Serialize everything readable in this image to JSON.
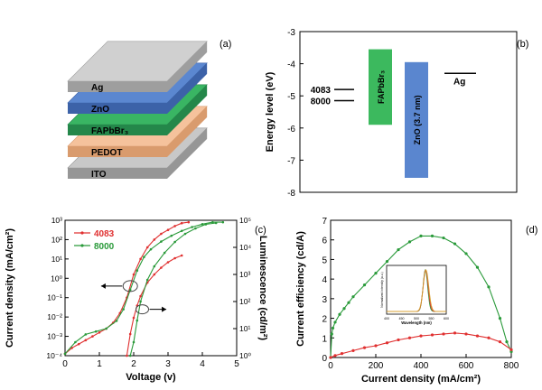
{
  "panel_a": {
    "label": "(a)",
    "layers": [
      {
        "name": "Ag",
        "color": "#d0d0d0",
        "side": "#9e9e9e"
      },
      {
        "name": "ZnO",
        "color": "#5b87d0",
        "side": "#3c62a8"
      },
      {
        "name": "FAPbBr₃",
        "color": "#39b563",
        "side": "#24874a"
      },
      {
        "name": "PEDOT",
        "color": "#f5c29c",
        "side": "#d99b6d"
      },
      {
        "name": "ITO",
        "color": "#c8c8c8",
        "side": "#969696"
      }
    ]
  },
  "chart_data": [
    {
      "panel": "(b)",
      "type": "bar",
      "ylabel": "Energy level (eV)",
      "ylim": [
        -8,
        -3
      ],
      "yticks": [
        -3,
        -4,
        -5,
        -6,
        -7,
        -8
      ],
      "levels": [
        {
          "label": "4083",
          "value": -4.8
        },
        {
          "label": "8000",
          "value": -5.15
        },
        {
          "label": "Ag",
          "value": -4.3
        }
      ],
      "bars": [
        {
          "label": "FAPbBr₃",
          "top": -3.55,
          "bottom": -5.9,
          "color": "#3cb95e"
        },
        {
          "label": "ZnO (3.7 nm)",
          "top": -3.95,
          "bottom": -7.55,
          "color": "#5a86cf"
        }
      ]
    },
    {
      "panel": "(c)",
      "type": "line",
      "xlabel": "Voltage (v)",
      "ylabel_left": "Current density (mA/cm²)",
      "ylabel_right": "Luminescence (cd/m²)",
      "xlim": [
        0,
        5
      ],
      "xticks": [
        0,
        1,
        2,
        3,
        4,
        5
      ],
      "y_left_log": [
        -4,
        3
      ],
      "y_right_log": [
        0,
        5
      ],
      "y_left_ticks": [
        "10⁻⁴",
        "10⁻³",
        "10⁻²",
        "10⁻¹",
        "10⁰",
        "10¹",
        "10²",
        "10³"
      ],
      "y_right_ticks": [
        "10⁰",
        "10¹",
        "10²",
        "10³",
        "10⁴",
        "10⁵"
      ],
      "legend": [
        {
          "name": "4083",
          "color": "#e03030"
        },
        {
          "name": "8000",
          "color": "#2a9a3a"
        }
      ],
      "series": [
        {
          "name": "4083",
          "axis": "left",
          "color": "#e03030",
          "x": [
            0.0,
            0.2,
            0.4,
            0.6,
            0.8,
            1.0,
            1.2,
            1.4,
            1.6,
            1.8,
            2.0,
            2.2,
            2.4,
            2.6,
            2.8,
            3.0,
            3.2,
            3.4,
            3.6
          ],
          "y": [
            -3.9,
            -3.6,
            -3.4,
            -3.2,
            -3.0,
            -2.8,
            -2.6,
            -2.3,
            -1.8,
            -1.0,
            0.2,
            1.0,
            1.6,
            2.0,
            2.3,
            2.5,
            2.7,
            2.85,
            2.9
          ]
        },
        {
          "name": "8000",
          "axis": "left",
          "color": "#2a9a3a",
          "x": [
            0.0,
            0.3,
            0.6,
            0.9,
            1.2,
            1.5,
            1.7,
            1.9,
            2.1,
            2.3,
            2.5,
            2.8,
            3.1,
            3.4,
            3.7,
            4.0,
            4.3,
            4.6
          ],
          "y": [
            -3.9,
            -3.3,
            -2.9,
            -2.75,
            -2.6,
            -2.2,
            -1.6,
            -0.6,
            0.4,
            1.1,
            1.5,
            1.9,
            2.2,
            2.45,
            2.65,
            2.8,
            2.9,
            2.9
          ]
        },
        {
          "name": "4083",
          "axis": "right",
          "color": "#e03030",
          "x": [
            1.8,
            1.9,
            2.0,
            2.1,
            2.2,
            2.4,
            2.6,
            2.8,
            3.0,
            3.2,
            3.4
          ],
          "y": [
            0.0,
            0.8,
            1.4,
            1.85,
            2.2,
            2.7,
            3.0,
            3.25,
            3.45,
            3.6,
            3.7
          ]
        },
        {
          "name": "8000",
          "axis": "right",
          "color": "#2a9a3a",
          "x": [
            1.9,
            2.0,
            2.1,
            2.2,
            2.4,
            2.6,
            2.9,
            3.2,
            3.5,
            3.8,
            4.1,
            4.4
          ],
          "y": [
            0.0,
            0.5,
            1.3,
            2.0,
            2.8,
            3.3,
            3.8,
            4.2,
            4.5,
            4.7,
            4.85,
            4.9
          ]
        }
      ]
    },
    {
      "panel": "(d)",
      "type": "line",
      "xlabel": "Current density (mA/cm²)",
      "ylabel": "Current efficiency (cd/A)",
      "xlim": [
        0,
        800
      ],
      "ylim": [
        0,
        7
      ],
      "xticks": [
        0,
        200,
        400,
        600,
        800
      ],
      "yticks": [
        0,
        1,
        2,
        3,
        4,
        5,
        6,
        7
      ],
      "series": [
        {
          "name": "8000",
          "color": "#2a9a3a",
          "x": [
            0,
            5,
            10,
            20,
            40,
            60,
            80,
            100,
            150,
            200,
            250,
            300,
            350,
            400,
            450,
            500,
            550,
            600,
            650,
            700,
            750,
            780,
            800
          ],
          "y": [
            0.0,
            1.2,
            1.5,
            1.8,
            2.2,
            2.5,
            2.8,
            3.1,
            3.7,
            4.3,
            4.9,
            5.5,
            5.9,
            6.2,
            6.2,
            6.1,
            5.8,
            5.3,
            4.6,
            3.6,
            2.0,
            0.8,
            0.3
          ]
        },
        {
          "name": "4083",
          "color": "#e03030",
          "x": [
            0,
            20,
            50,
            100,
            150,
            200,
            250,
            300,
            350,
            400,
            450,
            500,
            550,
            600,
            650,
            700,
            750,
            800
          ],
          "y": [
            0.0,
            0.1,
            0.2,
            0.35,
            0.5,
            0.6,
            0.75,
            0.9,
            1.0,
            1.1,
            1.15,
            1.2,
            1.25,
            1.2,
            1.1,
            1.0,
            0.8,
            0.4
          ]
        }
      ],
      "inset": {
        "xlabel": "Wavelength (nm)",
        "ylabel": "Normalized intensity (a.u.)",
        "xlim": [
          400,
          600
        ],
        "xticks": [
          400,
          450,
          500,
          550,
          600
        ],
        "series": [
          {
            "color": "#2a9a3a",
            "peak": 530,
            "width": 11
          },
          {
            "color": "#e03030",
            "peak": 531,
            "width": 12
          },
          {
            "color": "#d8a030",
            "peak": 532,
            "width": 13
          }
        ]
      }
    }
  ]
}
